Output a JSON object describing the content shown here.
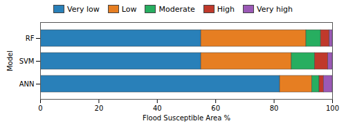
{
  "chart_data": {
    "type": "bar",
    "orientation": "horizontal",
    "stacked": true,
    "categories": [
      "ANN",
      "SVM",
      "RF"
    ],
    "series": [
      {
        "name": "Very low",
        "color": "#2980b9",
        "values": [
          82.0,
          55.0,
          55.0
        ]
      },
      {
        "name": "Low",
        "color": "#e67e22",
        "values": [
          11.0,
          31.0,
          36.0
        ]
      },
      {
        "name": "Moderate",
        "color": "#27ae60",
        "values": [
          2.5,
          8.0,
          5.0
        ]
      },
      {
        "name": "High",
        "color": "#c0392b",
        "values": [
          1.5,
          4.5,
          3.0
        ]
      },
      {
        "name": "Very high",
        "color": "#9b59b6",
        "values": [
          3.0,
          1.5,
          1.0
        ]
      }
    ],
    "xlabel": "Flood Susceptible Area %",
    "ylabel": "Model",
    "xlim": [
      0,
      100
    ],
    "xticks": [
      0,
      20,
      40,
      60,
      80,
      100
    ],
    "legend": "top",
    "grid": false
  }
}
